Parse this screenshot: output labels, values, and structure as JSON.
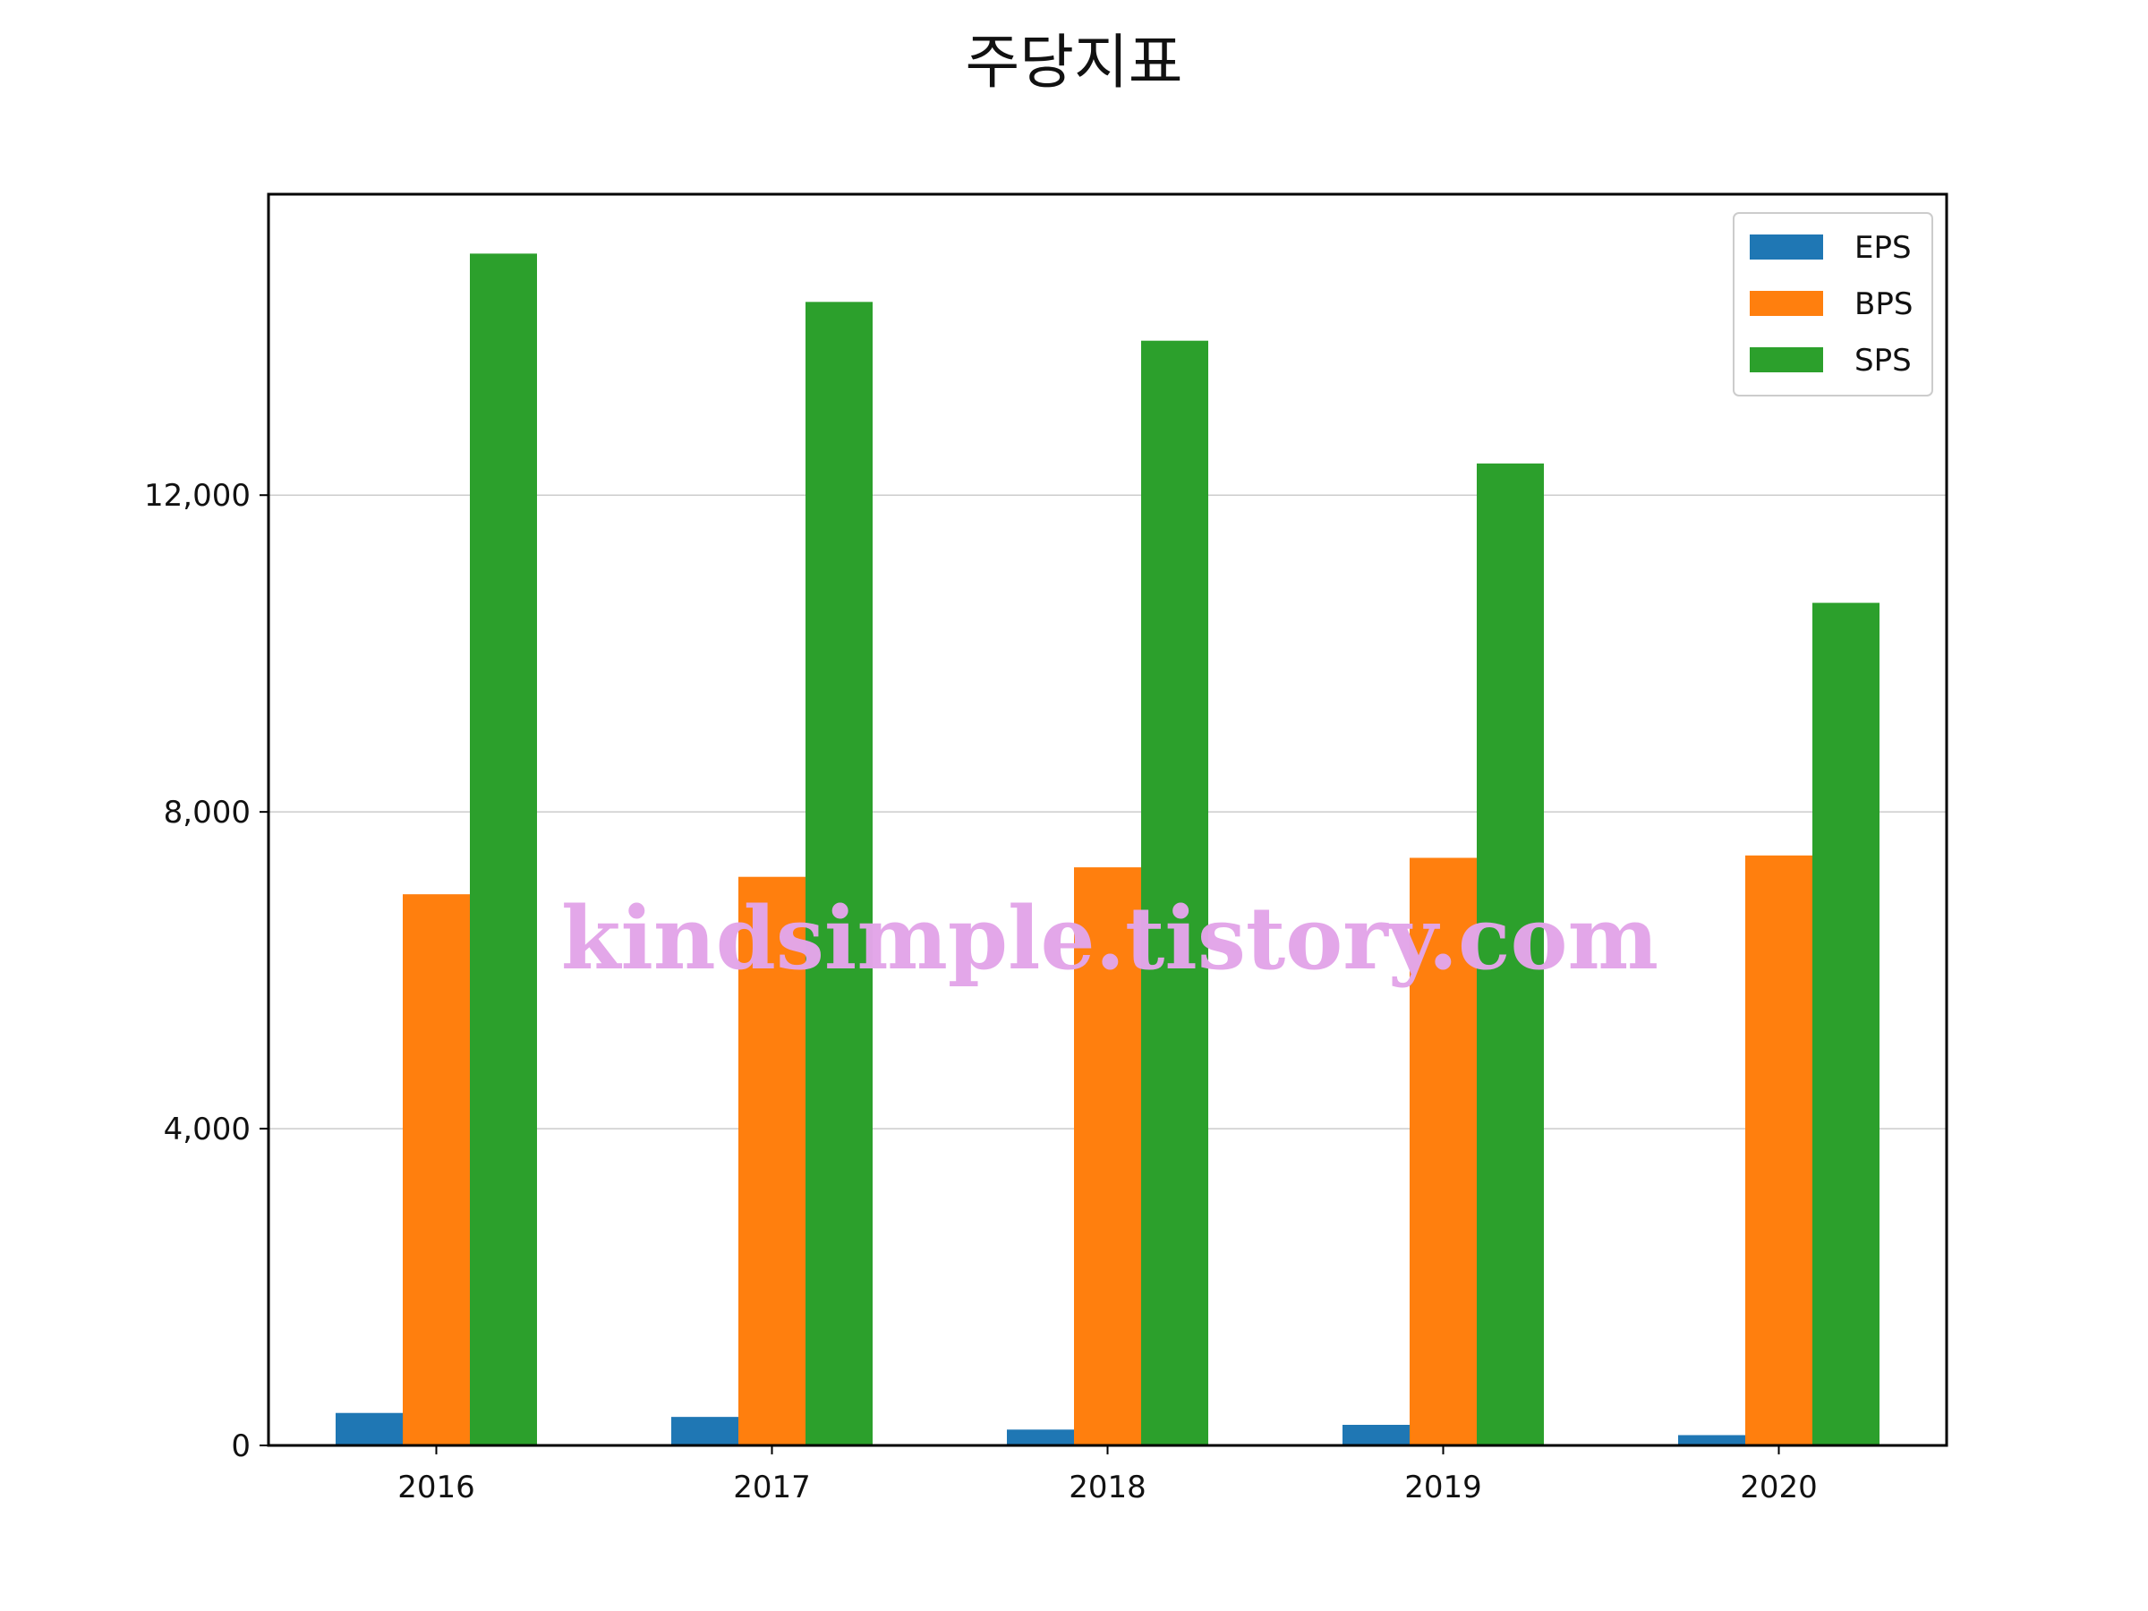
{
  "chart_data": {
    "type": "bar",
    "title": "주당지표",
    "xlabel": "",
    "ylabel": "",
    "categories": [
      "2016",
      "2017",
      "2018",
      "2019",
      "2020"
    ],
    "series": [
      {
        "name": "EPS",
        "values": [
          410,
          360,
          200,
          260,
          130
        ],
        "color": "#1f77b4"
      },
      {
        "name": "BPS",
        "values": [
          6960,
          7180,
          7300,
          7420,
          7450
        ],
        "color": "#ff7f0e"
      },
      {
        "name": "SPS",
        "values": [
          15050,
          14440,
          13950,
          12400,
          10640
        ],
        "color": "#2ca02c"
      }
    ],
    "ylim": [
      0,
      15800
    ],
    "yticks": [
      0,
      4000,
      8000,
      12000
    ],
    "ytick_labels": [
      "0",
      "4,000",
      "8,000",
      "12,000"
    ],
    "grid": "horizontal",
    "legend_position": "top-right",
    "axis_color": "#000000",
    "grid_color": "#cccccc"
  },
  "watermark": {
    "text": "kindsimple.tistory.com",
    "color": "#e3a6e9"
  }
}
